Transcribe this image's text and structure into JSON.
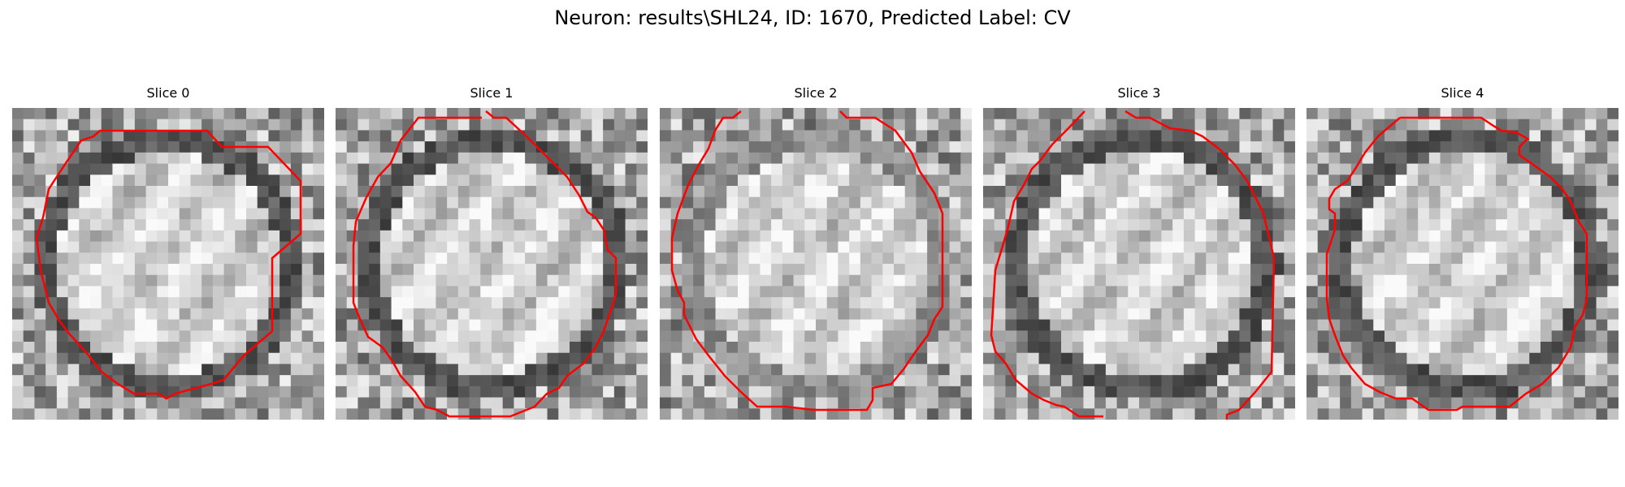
{
  "figure": {
    "title": "Neuron: results\\SHL24, ID: 1670, Predicted Label: CV",
    "contour_color": "#ff0000",
    "panels": [
      {
        "title": "Slice 0",
        "seed": 11,
        "dark_ring": true,
        "shift": 0.0
      },
      {
        "title": "Slice 1",
        "seed": 23,
        "dark_ring": true,
        "shift": 0.05
      },
      {
        "title": "Slice 2",
        "seed": 37,
        "dark_ring": false,
        "shift": 0.1
      },
      {
        "title": "Slice 3",
        "seed": 53,
        "dark_ring": true,
        "shift": 0.15
      },
      {
        "title": "Slice 4",
        "seed": 71,
        "dark_ring": true,
        "shift": 0.2
      }
    ]
  }
}
